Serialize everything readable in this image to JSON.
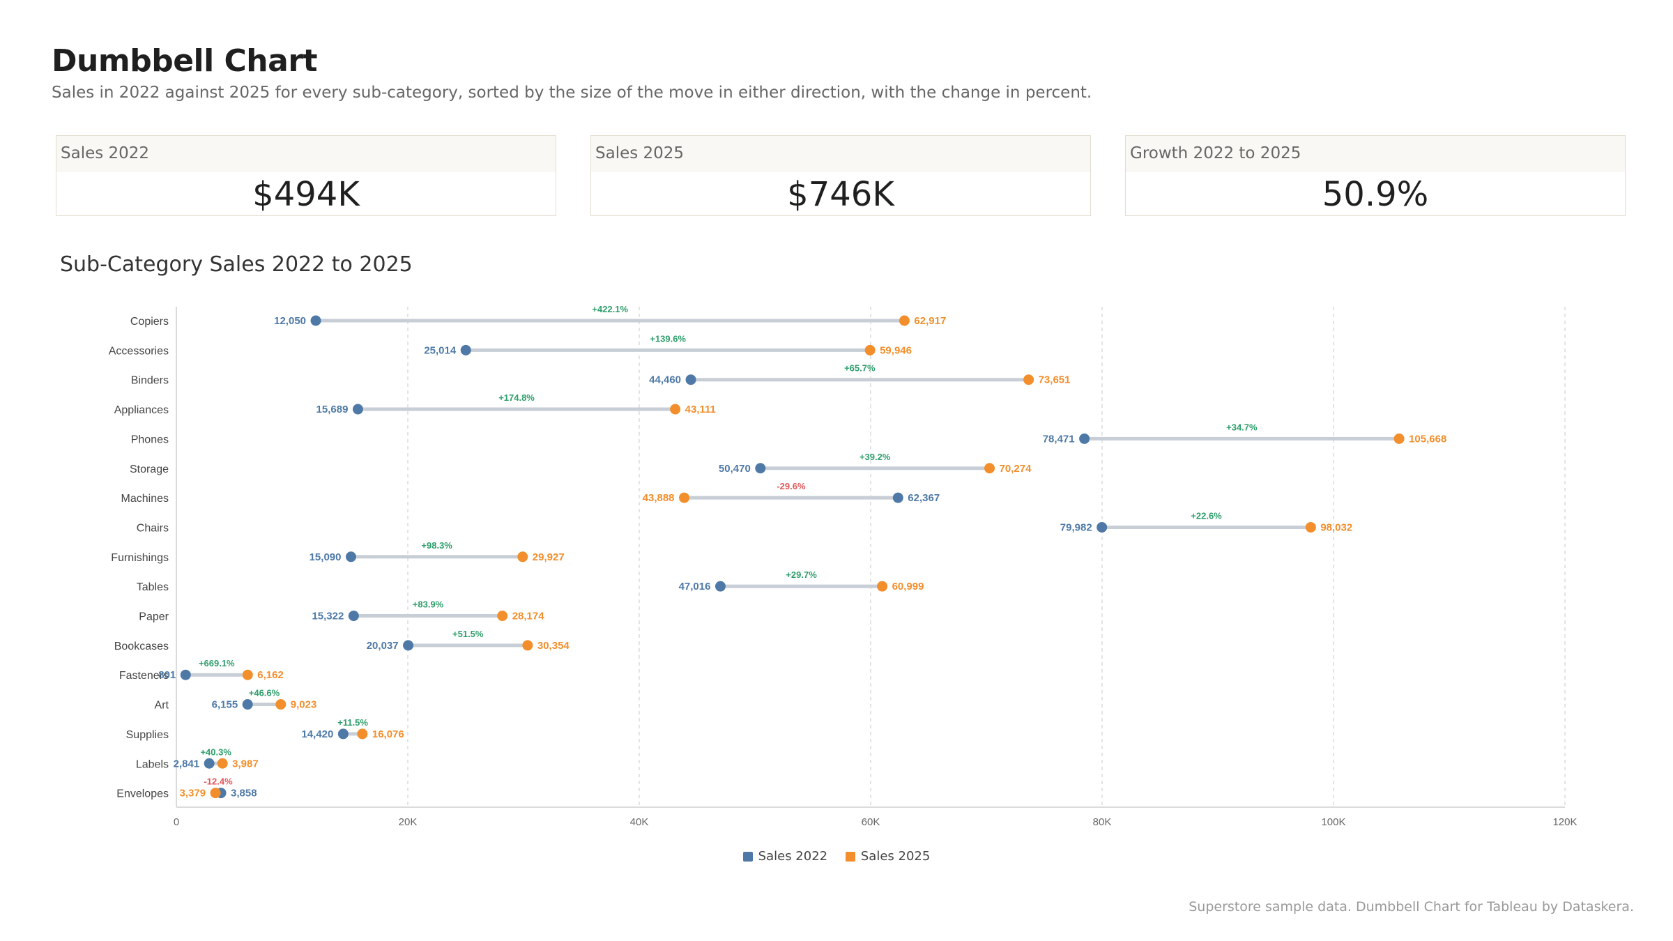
{
  "header": {
    "title": "Dumbbell Chart",
    "subtitle": "Sales in 2022 against 2025 for every sub-category, sorted by the size of the move in either direction, with the change in percent."
  },
  "kpis": [
    {
      "label": "Sales 2022",
      "value": "$494K"
    },
    {
      "label": "Sales 2025",
      "value": "$746K"
    },
    {
      "label": "Growth 2022 to 2025",
      "value": "50.9%"
    }
  ],
  "colors": {
    "sales_2022": "#4e79a7",
    "sales_2025": "#f28e2b",
    "positive": "#2e9e6b",
    "negative": "#e15759",
    "connector": "#c8ced6",
    "grid": "#dcdcdc"
  },
  "chart_data": {
    "type": "dumbbell",
    "title": "Sub-Category Sales 2022 to 2025",
    "xlim": [
      0,
      120000
    ],
    "xticks": [
      0,
      20000,
      40000,
      60000,
      80000,
      100000,
      120000
    ],
    "xtick_labels": [
      "0",
      "20K",
      "40K",
      "60K",
      "80K",
      "100K",
      "120K"
    ],
    "grid": true,
    "legend_position": "bottom-center",
    "series_names": [
      "Sales 2022",
      "Sales 2025"
    ],
    "categories": [
      "Copiers",
      "Accessories",
      "Binders",
      "Appliances",
      "Phones",
      "Storage",
      "Machines",
      "Chairs",
      "Furnishings",
      "Tables",
      "Paper",
      "Bookcases",
      "Fasteners",
      "Art",
      "Supplies",
      "Labels",
      "Envelopes"
    ],
    "sales_2022": [
      12050,
      25014,
      44460,
      15689,
      78471,
      50470,
      62367,
      79982,
      15090,
      47016,
      15322,
      20037,
      801,
      6155,
      14420,
      2841,
      3858
    ],
    "sales_2025": [
      62917,
      59946,
      73651,
      43111,
      105668,
      70274,
      43888,
      98032,
      29927,
      60999,
      28174,
      30354,
      6162,
      9023,
      16076,
      3987,
      3379
    ],
    "labels_2022": [
      "12,050",
      "25,014",
      "44,460",
      "15,689",
      "78,471",
      "50,470",
      "62,367",
      "79,982",
      "15,090",
      "47,016",
      "15,322",
      "20,037",
      "801",
      "6,155",
      "14,420",
      "2,841",
      "3,858"
    ],
    "labels_2025": [
      "62,917",
      "59,946",
      "73,651",
      "43,111",
      "105,668",
      "70,274",
      "43,888",
      "98,032",
      "29,927",
      "60,999",
      "28,174",
      "30,354",
      "6,162",
      "9,023",
      "16,076",
      "3,987",
      "3,379"
    ],
    "change_labels": [
      "+422.1%",
      "+139.6%",
      "+65.7%",
      "+174.8%",
      "+34.7%",
      "+39.2%",
      "-29.6%",
      "+22.6%",
      "+98.3%",
      "+29.7%",
      "+83.9%",
      "+51.5%",
      "+669.1%",
      "+46.6%",
      "+11.5%",
      "+40.3%",
      "-12.4%"
    ]
  },
  "footer": "Superstore sample data. Dumbbell Chart for Tableau by Dataskera."
}
